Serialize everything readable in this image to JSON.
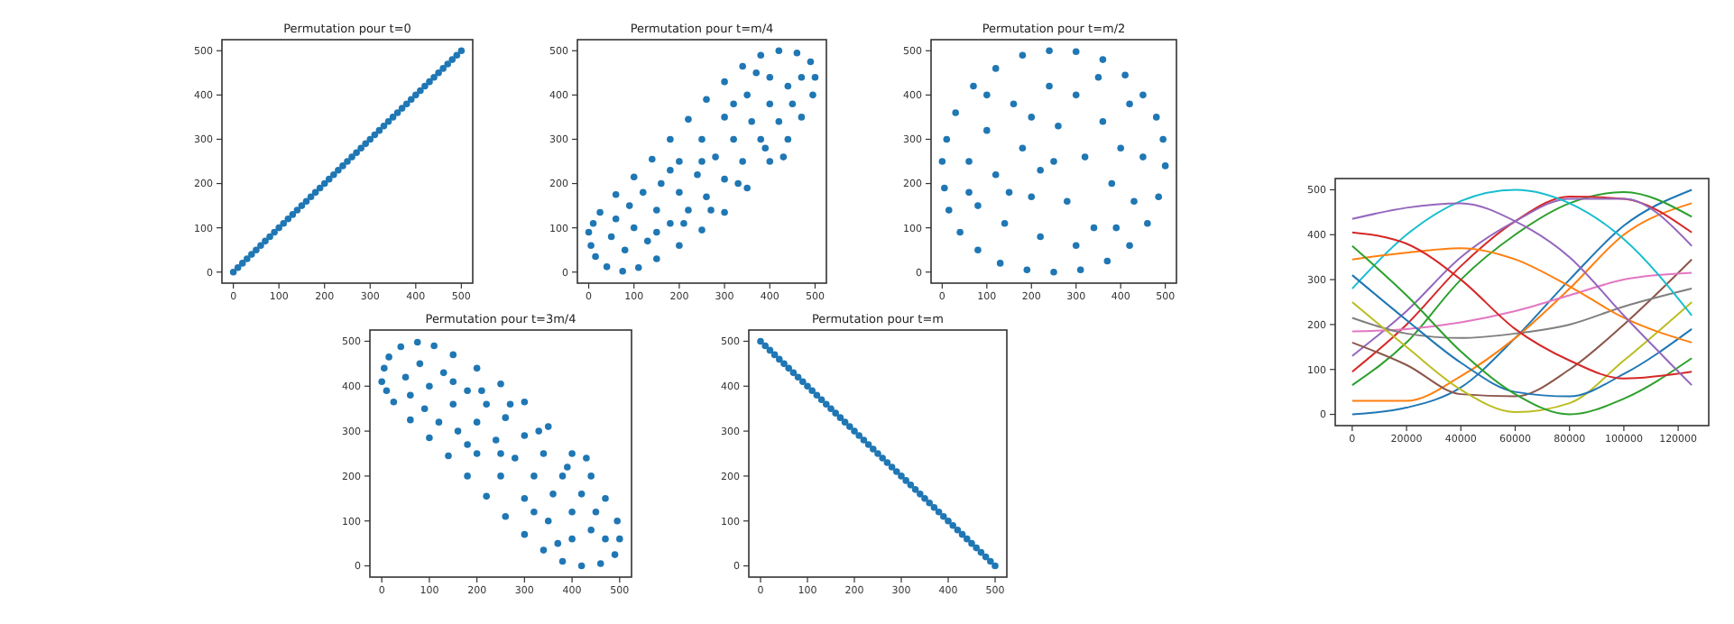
{
  "chart_data": [
    {
      "type": "scatter",
      "title": "Permutation pour t=0",
      "color": "#1f77b4",
      "marker": "circle",
      "xlim": [
        -25,
        525
      ],
      "ylim": [
        -25,
        525
      ],
      "xticks": [
        0,
        100,
        200,
        300,
        400,
        500
      ],
      "yticks": [
        0,
        100,
        200,
        300,
        400,
        500
      ],
      "x": [
        0,
        10,
        20,
        30,
        40,
        50,
        60,
        70,
        80,
        90,
        100,
        110,
        120,
        130,
        140,
        150,
        160,
        170,
        180,
        190,
        200,
        210,
        220,
        230,
        240,
        250,
        260,
        270,
        280,
        290,
        300,
        310,
        320,
        330,
        340,
        350,
        360,
        370,
        380,
        390,
        400,
        410,
        420,
        430,
        440,
        450,
        460,
        470,
        480,
        490,
        500
      ],
      "values": [
        0,
        10,
        20,
        30,
        40,
        50,
        60,
        70,
        80,
        90,
        100,
        110,
        120,
        130,
        140,
        150,
        160,
        170,
        180,
        190,
        200,
        210,
        220,
        230,
        240,
        250,
        260,
        270,
        280,
        290,
        300,
        310,
        320,
        330,
        340,
        350,
        360,
        370,
        380,
        390,
        400,
        410,
        420,
        430,
        440,
        450,
        460,
        470,
        480,
        490,
        500
      ]
    },
    {
      "type": "scatter",
      "title": "Permutation pour t=m/4",
      "color": "#1f77b4",
      "marker": "circle",
      "xlim": [
        -25,
        525
      ],
      "ylim": [
        -25,
        525
      ],
      "xticks": [
        0,
        100,
        200,
        300,
        400,
        500
      ],
      "yticks": [
        0,
        100,
        200,
        300,
        400,
        500
      ],
      "x": [
        0,
        5,
        15,
        40,
        75,
        110,
        150,
        200,
        250,
        300,
        350,
        400,
        440,
        470,
        495,
        500,
        490,
        460,
        420,
        380,
        340,
        300,
        260,
        220,
        180,
        140,
        100,
        60,
        25,
        10,
        50,
        80,
        100,
        130,
        150,
        180,
        200,
        220,
        240,
        260,
        280,
        300,
        320,
        340,
        360,
        380,
        400,
        420,
        440,
        450,
        470,
        120,
        160,
        200,
        250,
        300,
        350,
        400,
        60,
        90,
        150,
        210,
        270,
        330,
        390,
        430,
        250,
        180,
        320,
        370
      ],
      "values": [
        90,
        60,
        35,
        12,
        2,
        10,
        30,
        60,
        95,
        135,
        190,
        250,
        300,
        350,
        400,
        440,
        475,
        495,
        500,
        490,
        465,
        430,
        390,
        345,
        300,
        255,
        215,
        175,
        135,
        110,
        80,
        50,
        100,
        70,
        140,
        110,
        180,
        140,
        220,
        170,
        260,
        210,
        300,
        250,
        340,
        300,
        380,
        340,
        420,
        380,
        440,
        180,
        200,
        250,
        300,
        350,
        400,
        440,
        120,
        150,
        90,
        110,
        140,
        200,
        280,
        260,
        250,
        230,
        380,
        450
      ]
    },
    {
      "type": "scatter",
      "title": "Permutation pour t=m/2",
      "color": "#1f77b4",
      "marker": "circle",
      "xlim": [
        -25,
        525
      ],
      "ylim": [
        -25,
        525
      ],
      "xticks": [
        0,
        100,
        200,
        300,
        400,
        500
      ],
      "yticks": [
        0,
        100,
        200,
        300,
        400,
        500
      ],
      "x": [
        0,
        5,
        15,
        40,
        80,
        130,
        190,
        250,
        310,
        370,
        420,
        460,
        485,
        500,
        495,
        480,
        450,
        410,
        360,
        300,
        240,
        180,
        120,
        70,
        30,
        10,
        60,
        80,
        100,
        120,
        140,
        160,
        180,
        200,
        220,
        240,
        250,
        260,
        280,
        300,
        320,
        340,
        360,
        380,
        400,
        420,
        430,
        450,
        200,
        150,
        300,
        350,
        100,
        60,
        390,
        220
      ],
      "values": [
        250,
        190,
        140,
        90,
        50,
        20,
        5,
        0,
        5,
        25,
        60,
        110,
        170,
        240,
        300,
        350,
        400,
        445,
        480,
        498,
        500,
        490,
        460,
        420,
        360,
        300,
        250,
        150,
        320,
        220,
        110,
        380,
        280,
        170,
        80,
        420,
        250,
        330,
        160,
        400,
        260,
        100,
        340,
        200,
        280,
        380,
        160,
        260,
        350,
        180,
        60,
        440,
        400,
        180,
        100,
        230
      ]
    },
    {
      "type": "scatter",
      "title": "Permutation pour t=3m/4",
      "color": "#1f77b4",
      "marker": "circle",
      "xlim": [
        -25,
        525
      ],
      "ylim": [
        -25,
        525
      ],
      "xticks": [
        0,
        100,
        200,
        300,
        400,
        500
      ],
      "yticks": [
        0,
        100,
        200,
        300,
        400,
        500
      ],
      "x": [
        0,
        5,
        15,
        40,
        75,
        110,
        150,
        200,
        250,
        300,
        350,
        400,
        440,
        470,
        495,
        500,
        490,
        460,
        420,
        380,
        340,
        300,
        260,
        220,
        180,
        140,
        100,
        60,
        25,
        10,
        50,
        80,
        100,
        130,
        150,
        180,
        200,
        220,
        240,
        260,
        280,
        300,
        320,
        340,
        360,
        380,
        400,
        420,
        440,
        450,
        470,
        120,
        160,
        200,
        250,
        300,
        350,
        400,
        60,
        90,
        150,
        210,
        270,
        330,
        390,
        430,
        250,
        180,
        320,
        370
      ],
      "values": [
        410,
        440,
        465,
        488,
        498,
        490,
        470,
        440,
        405,
        365,
        310,
        250,
        200,
        150,
        100,
        60,
        25,
        5,
        0,
        10,
        35,
        70,
        110,
        155,
        200,
        245,
        285,
        325,
        365,
        390,
        420,
        450,
        400,
        430,
        360,
        390,
        320,
        360,
        280,
        330,
        240,
        290,
        200,
        250,
        160,
        200,
        120,
        160,
        80,
        120,
        60,
        320,
        300,
        250,
        200,
        150,
        100,
        60,
        380,
        350,
        410,
        390,
        360,
        300,
        220,
        240,
        250,
        270,
        120,
        50
      ]
    },
    {
      "type": "scatter",
      "title": "Permutation pour t=m",
      "color": "#1f77b4",
      "marker": "circle",
      "xlim": [
        -25,
        525
      ],
      "ylim": [
        -25,
        525
      ],
      "xticks": [
        0,
        100,
        200,
        300,
        400,
        500
      ],
      "yticks": [
        0,
        100,
        200,
        300,
        400,
        500
      ],
      "x": [
        0,
        10,
        20,
        30,
        40,
        50,
        60,
        70,
        80,
        90,
        100,
        110,
        120,
        130,
        140,
        150,
        160,
        170,
        180,
        190,
        200,
        210,
        220,
        230,
        240,
        250,
        260,
        270,
        280,
        290,
        300,
        310,
        320,
        330,
        340,
        350,
        360,
        370,
        380,
        390,
        400,
        410,
        420,
        430,
        440,
        450,
        460,
        470,
        480,
        490,
        500
      ],
      "values": [
        500,
        490,
        480,
        470,
        460,
        450,
        440,
        430,
        420,
        410,
        400,
        390,
        380,
        370,
        360,
        350,
        340,
        330,
        320,
        310,
        300,
        290,
        280,
        270,
        260,
        250,
        240,
        230,
        220,
        210,
        200,
        190,
        180,
        170,
        160,
        150,
        140,
        130,
        120,
        110,
        100,
        90,
        80,
        70,
        60,
        50,
        40,
        30,
        20,
        10,
        0
      ]
    },
    {
      "type": "line",
      "xlim": [
        -6250,
        131250
      ],
      "ylim": [
        -25,
        525
      ],
      "xticks": [
        0,
        20000,
        40000,
        60000,
        80000,
        100000,
        120000
      ],
      "yticks": [
        0,
        100,
        200,
        300,
        400,
        500
      ],
      "x": [
        0,
        20000,
        40000,
        60000,
        80000,
        100000,
        125000
      ],
      "series": [
        {
          "color": "#1f77b4",
          "values": [
            0,
            15,
            60,
            170,
            300,
            420,
            500
          ]
        },
        {
          "color": "#ff7f0e",
          "values": [
            30,
            30,
            85,
            170,
            280,
            400,
            470
          ]
        },
        {
          "color": "#2ca02c",
          "values": [
            65,
            160,
            300,
            400,
            470,
            495,
            440
          ]
        },
        {
          "color": "#d62728",
          "values": [
            95,
            200,
            330,
            430,
            485,
            480,
            405
          ]
        },
        {
          "color": "#9467bd",
          "values": [
            130,
            230,
            350,
            430,
            480,
            480,
            375
          ]
        },
        {
          "color": "#8c564b",
          "values": [
            160,
            110,
            45,
            40,
            100,
            200,
            345
          ]
        },
        {
          "color": "#e377c2",
          "values": [
            185,
            190,
            205,
            230,
            265,
            300,
            315
          ]
        },
        {
          "color": "#7f7f7f",
          "values": [
            215,
            180,
            170,
            180,
            200,
            240,
            280
          ]
        },
        {
          "color": "#bcbd22",
          "values": [
            250,
            150,
            55,
            5,
            25,
            120,
            250
          ]
        },
        {
          "color": "#17becf",
          "values": [
            280,
            400,
            475,
            500,
            470,
            390,
            220
          ]
        },
        {
          "color": "#1f77b4",
          "values": [
            310,
            210,
            115,
            50,
            40,
            90,
            190
          ]
        },
        {
          "color": "#ff7f0e",
          "values": [
            345,
            360,
            370,
            345,
            285,
            215,
            160
          ]
        },
        {
          "color": "#2ca02c",
          "values": [
            375,
            265,
            140,
            45,
            0,
            35,
            125
          ]
        },
        {
          "color": "#d62728",
          "values": [
            405,
            380,
            300,
            190,
            120,
            80,
            95
          ]
        },
        {
          "color": "#9467bd",
          "values": [
            435,
            460,
            470,
            430,
            350,
            220,
            65
          ]
        }
      ]
    }
  ]
}
